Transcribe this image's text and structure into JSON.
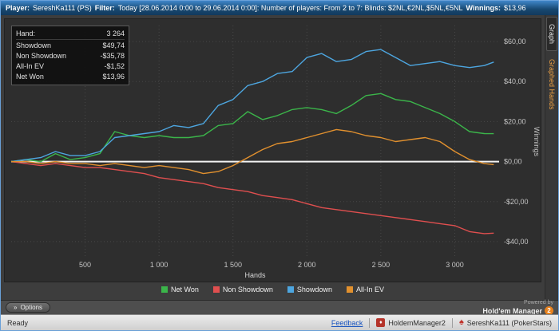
{
  "window": {
    "title": {
      "player_label": "Player:",
      "player": "SereshKa111 (PS)",
      "filter_label": "Filter:",
      "filter": "Today [28.06.2014 0:00 to 29.06.2014 0:00]: Number of players: From 2 to 7: Blinds: $2NL,€2NL,$5NL,€5NL",
      "winnings_label": "Winnings:",
      "winnings": "$13,96"
    }
  },
  "stats_panel": {
    "rows": [
      {
        "label": "Hand:",
        "value": "3 264"
      },
      {
        "label": "Showdown",
        "value": "$49,74"
      },
      {
        "label": "Non Showdown",
        "value": "-$35,78"
      },
      {
        "label": "All-In EV",
        "value": "-$1,52"
      },
      {
        "label": "Net Won",
        "value": "$13,96"
      }
    ]
  },
  "sidebar": {
    "tabs": [
      {
        "label": "Graph"
      },
      {
        "label": "Graphed Hands"
      }
    ]
  },
  "chart_data": {
    "type": "line",
    "title": "",
    "xlabel": "Hands",
    "ylabel": "Winnings",
    "xlim": [
      0,
      3300
    ],
    "ylim": [
      -48,
      68
    ],
    "grid": true,
    "legend_position": "bottom",
    "grid_color": "#474747",
    "zero_line_color": "#f2f2f2",
    "x": [
      0,
      100,
      200,
      300,
      400,
      500,
      600,
      700,
      800,
      900,
      1000,
      1100,
      1200,
      1300,
      1400,
      1500,
      1600,
      1700,
      1800,
      1900,
      2000,
      2100,
      2200,
      2300,
      2400,
      2500,
      2600,
      2700,
      2800,
      2900,
      3000,
      3100,
      3200,
      3264
    ],
    "series": [
      {
        "name": "Net Won",
        "color": "#3bb54a",
        "values": [
          0,
          1,
          0,
          4,
          1,
          2,
          4,
          15,
          13,
          12,
          13,
          12,
          12,
          13,
          18,
          19,
          25,
          21,
          23,
          26,
          27,
          26,
          24,
          28,
          33,
          34,
          31,
          30,
          27,
          24,
          20,
          15,
          14,
          13.96
        ]
      },
      {
        "name": "Non Showdown",
        "color": "#e04f4f",
        "values": [
          0,
          -1,
          -2,
          -1,
          -2,
          -3,
          -3,
          -4,
          -5,
          -6,
          -8,
          -9,
          -10,
          -11,
          -13,
          -14,
          -15,
          -17,
          -18,
          -19,
          -21,
          -23,
          -24,
          -25,
          -26,
          -27,
          -28,
          -29,
          -30,
          -31,
          -32,
          -35,
          -36,
          -35.78
        ]
      },
      {
        "name": "Showdown",
        "color": "#4da6e0",
        "values": [
          0,
          1,
          2,
          5,
          3,
          3,
          5,
          12,
          13,
          14,
          15,
          18,
          17,
          19,
          28,
          31,
          38,
          40,
          44,
          45,
          52,
          54,
          50,
          51,
          55,
          56,
          52,
          48,
          49,
          50,
          48,
          47,
          48,
          49.74
        ]
      },
      {
        "name": "All-In EV",
        "color": "#e2912e",
        "values": [
          0,
          0,
          -1,
          0,
          -1,
          -1,
          -2,
          -1,
          -2,
          -3,
          -2,
          -3,
          -4,
          -6,
          -5,
          -2,
          2,
          6,
          9,
          10,
          12,
          14,
          16,
          15,
          13,
          12,
          10,
          11,
          12,
          10,
          5,
          1,
          -1,
          -1.52
        ]
      }
    ],
    "x_ticks": [
      {
        "value": 500,
        "label": "500"
      },
      {
        "value": 1000,
        "label": "1 000"
      },
      {
        "value": 1500,
        "label": "1 500"
      },
      {
        "value": 2000,
        "label": "2 000"
      },
      {
        "value": 2500,
        "label": "2 500"
      },
      {
        "value": 3000,
        "label": "3 000"
      }
    ],
    "y_ticks": [
      {
        "value": 60,
        "label": "$60,00"
      },
      {
        "value": 40,
        "label": "$40,00"
      },
      {
        "value": 20,
        "label": "$20,00"
      },
      {
        "value": 0,
        "label": "$0,00"
      },
      {
        "value": -20,
        "label": "-$20,00"
      },
      {
        "value": -40,
        "label": "-$40,00"
      }
    ]
  },
  "footer": {
    "options_button": "Options",
    "powered_by": "Powered by",
    "brand": "Hold'em Manager",
    "brand_badge": "2"
  },
  "statusbar": {
    "ready": "Ready",
    "feedback": "Feedback",
    "app_name": "HoldemManager2",
    "account": "SereshKa111 (PokerStars)"
  },
  "icons": {
    "options_chevrons": "»",
    "hm_logo": "♦",
    "pokerstars_spade": "♠"
  }
}
